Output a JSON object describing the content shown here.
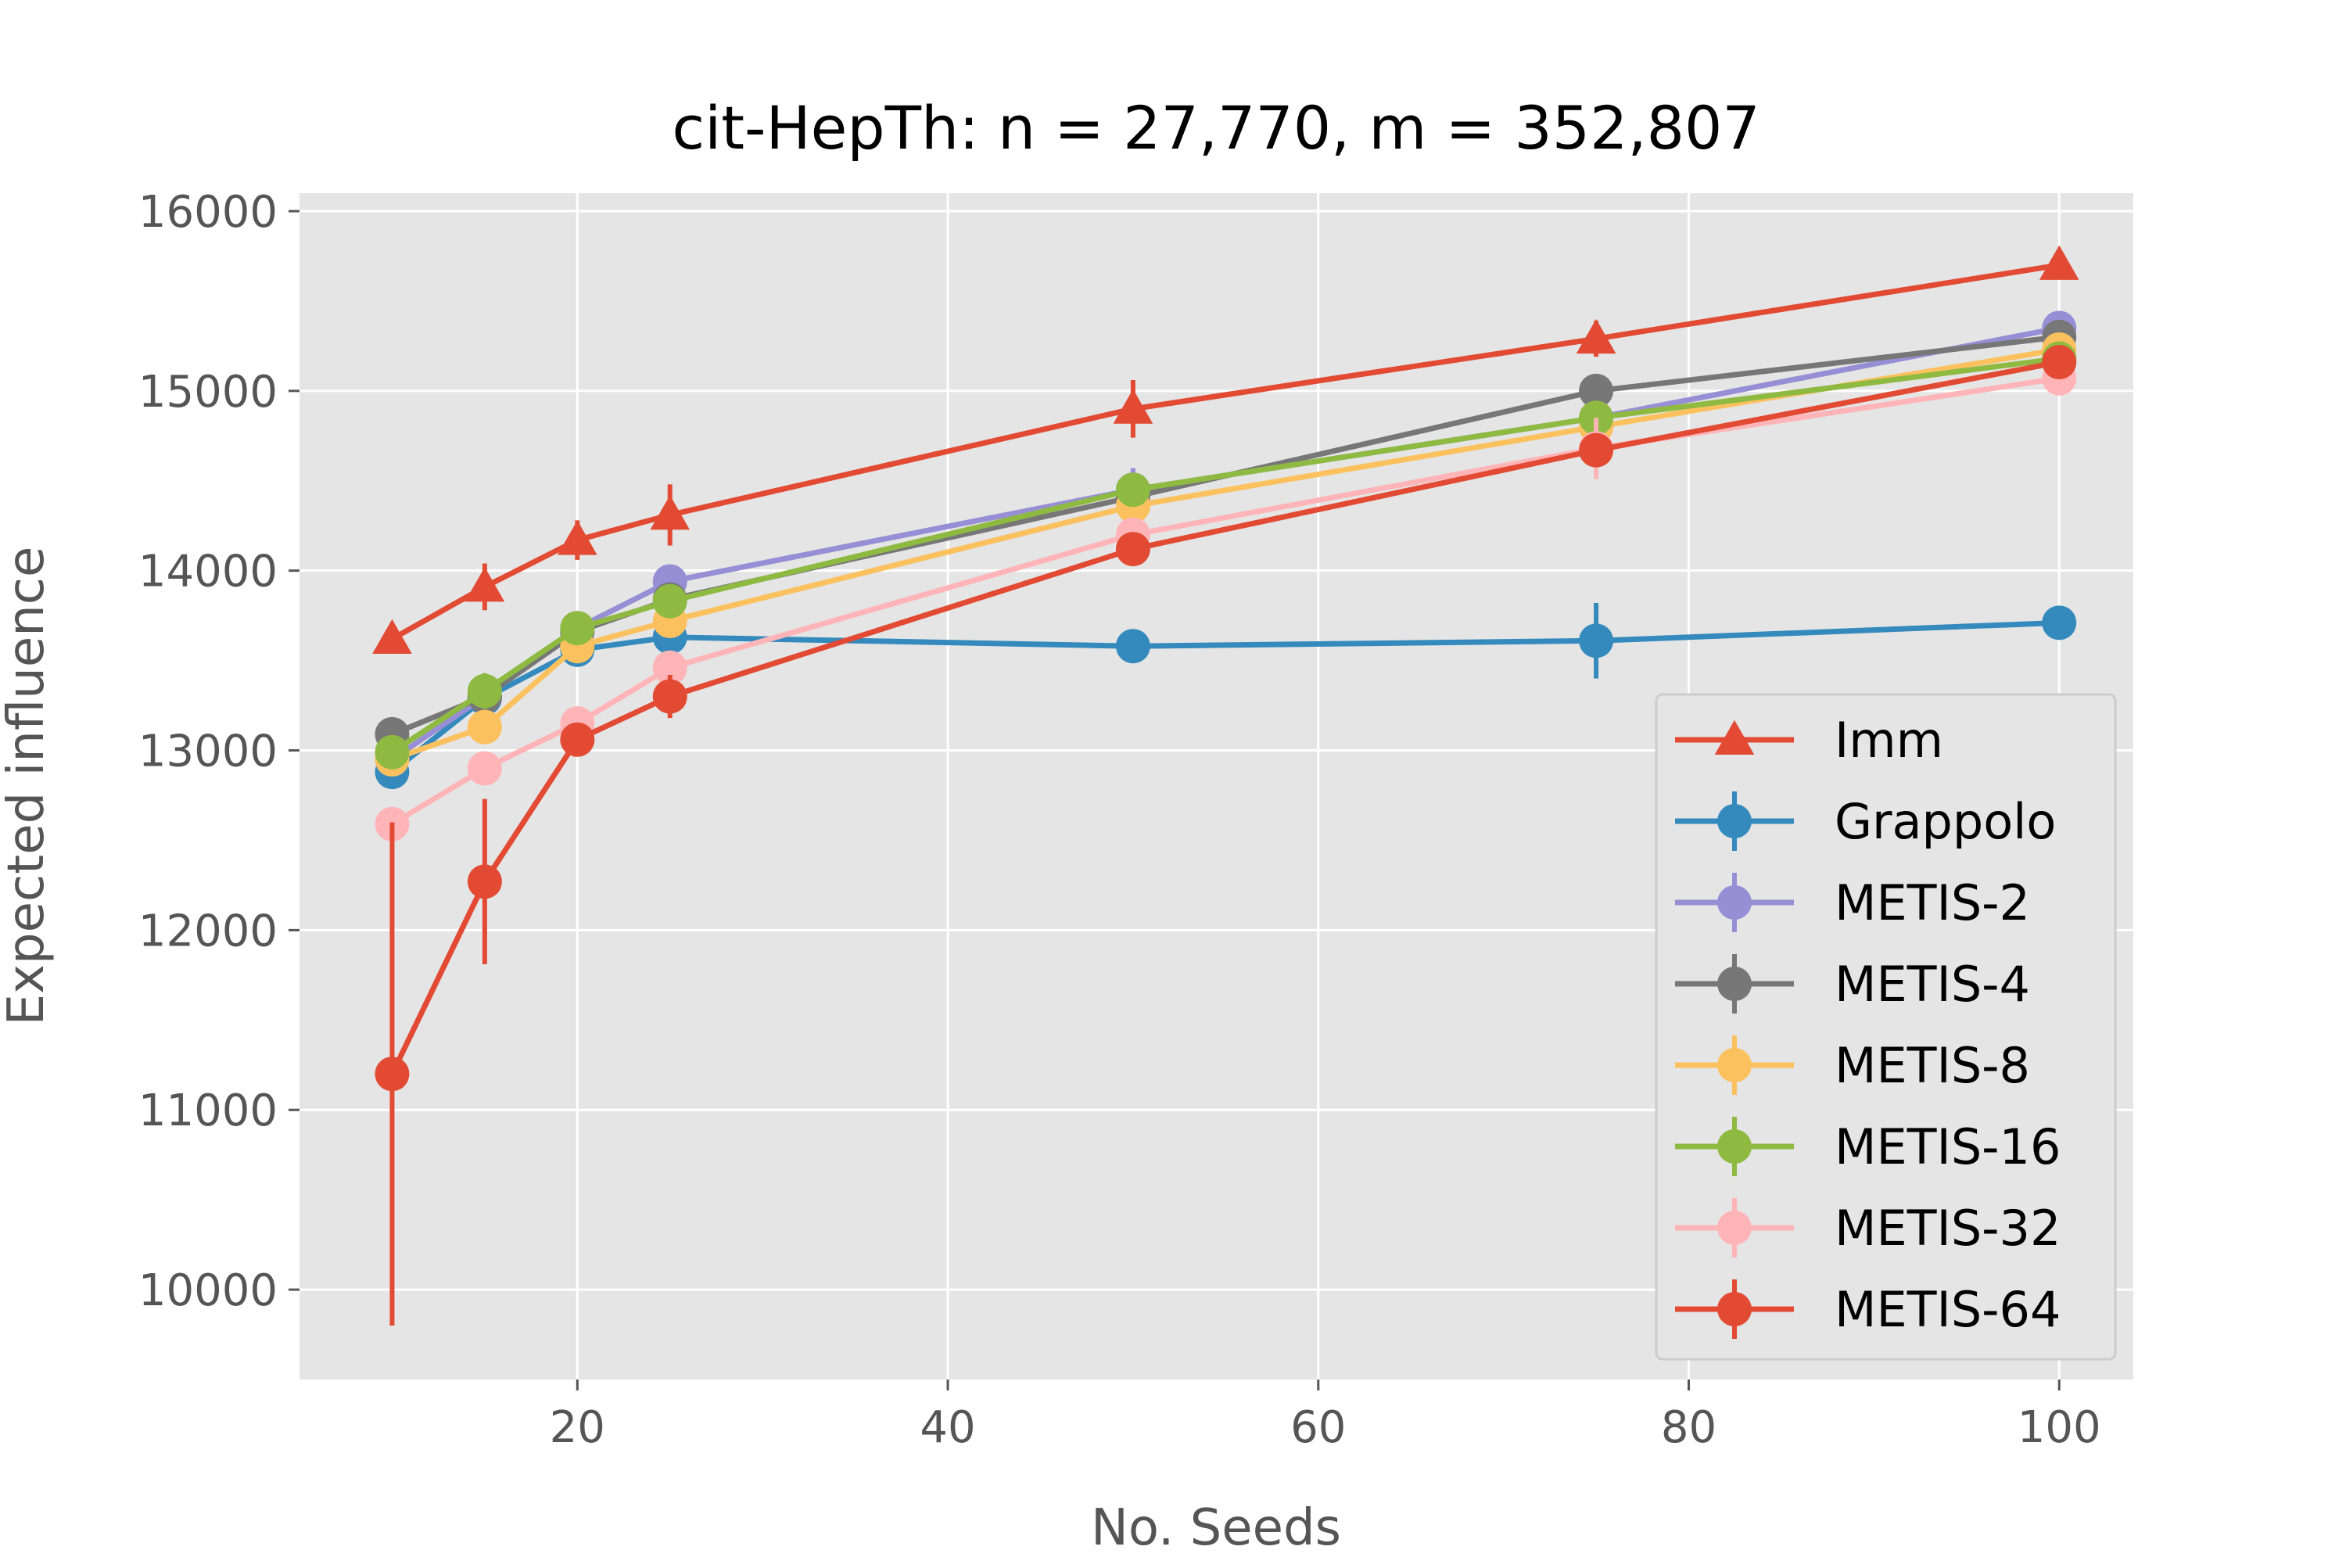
{
  "chart_data": {
    "type": "line",
    "title": "cit-HepTh: n = 27,770, m = 352,807",
    "xlabel": "No. Seeds",
    "ylabel": "Expected influence",
    "xlim": [
      5,
      104
    ],
    "ylim": [
      9500,
      16100
    ],
    "x_ticks": [
      20,
      40,
      60,
      80,
      100
    ],
    "y_ticks": [
      10000,
      11000,
      12000,
      13000,
      14000,
      15000,
      16000
    ],
    "grid": true,
    "legend_position": "lower-right",
    "x": [
      10,
      15,
      20,
      25,
      50,
      75,
      100
    ],
    "series": [
      {
        "name": "Imm",
        "color": "#e24a33",
        "marker": "triangle",
        "values": [
          13620,
          13910,
          14170,
          14310,
          14900,
          15290,
          15700
        ],
        "errors": [
          60,
          130,
          110,
          170,
          160,
          100,
          60
        ]
      },
      {
        "name": "Grappolo",
        "color": "#348abd",
        "marker": "circle",
        "values": [
          12880,
          13290,
          13560,
          13630,
          13580,
          13610,
          13710
        ],
        "errors": [
          80,
          70,
          60,
          40,
          50,
          210,
          90
        ]
      },
      {
        "name": "METIS-2",
        "color": "#988ed5",
        "marker": "circle",
        "values": [
          12950,
          13300,
          13680,
          13940,
          14450,
          14850,
          15350
        ],
        "errors": [
          60,
          80,
          70,
          70,
          120,
          100,
          60
        ]
      },
      {
        "name": "METIS-4",
        "color": "#777777",
        "marker": "circle",
        "values": [
          13090,
          13300,
          13660,
          13840,
          14410,
          15000,
          15300
        ],
        "errors": [
          40,
          60,
          60,
          60,
          80,
          60,
          60
        ]
      },
      {
        "name": "METIS-8",
        "color": "#fbc15e",
        "marker": "circle",
        "values": [
          12950,
          13130,
          13580,
          13720,
          14360,
          14800,
          15230
        ],
        "errors": [
          60,
          80,
          60,
          60,
          80,
          80,
          60
        ]
      },
      {
        "name": "METIS-16",
        "color": "#8eba42",
        "marker": "circle",
        "values": [
          12990,
          13330,
          13680,
          13830,
          14450,
          14850,
          15180
        ],
        "errors": [
          40,
          100,
          70,
          70,
          60,
          60,
          60
        ]
      },
      {
        "name": "METIS-32",
        "color": "#ffb5b8",
        "marker": "circle",
        "values": [
          12590,
          12900,
          13150,
          13460,
          14200,
          14680,
          15070
        ],
        "errors": [
          60,
          60,
          80,
          80,
          80,
          170,
          60
        ]
      },
      {
        "name": "METIS-64",
        "color": "#e24a33",
        "marker": "circle",
        "values": [
          11200,
          12270,
          13060,
          13300,
          14120,
          14670,
          15160
        ],
        "errors": [
          1400,
          460,
          60,
          120,
          60,
          60,
          60
        ]
      }
    ]
  }
}
